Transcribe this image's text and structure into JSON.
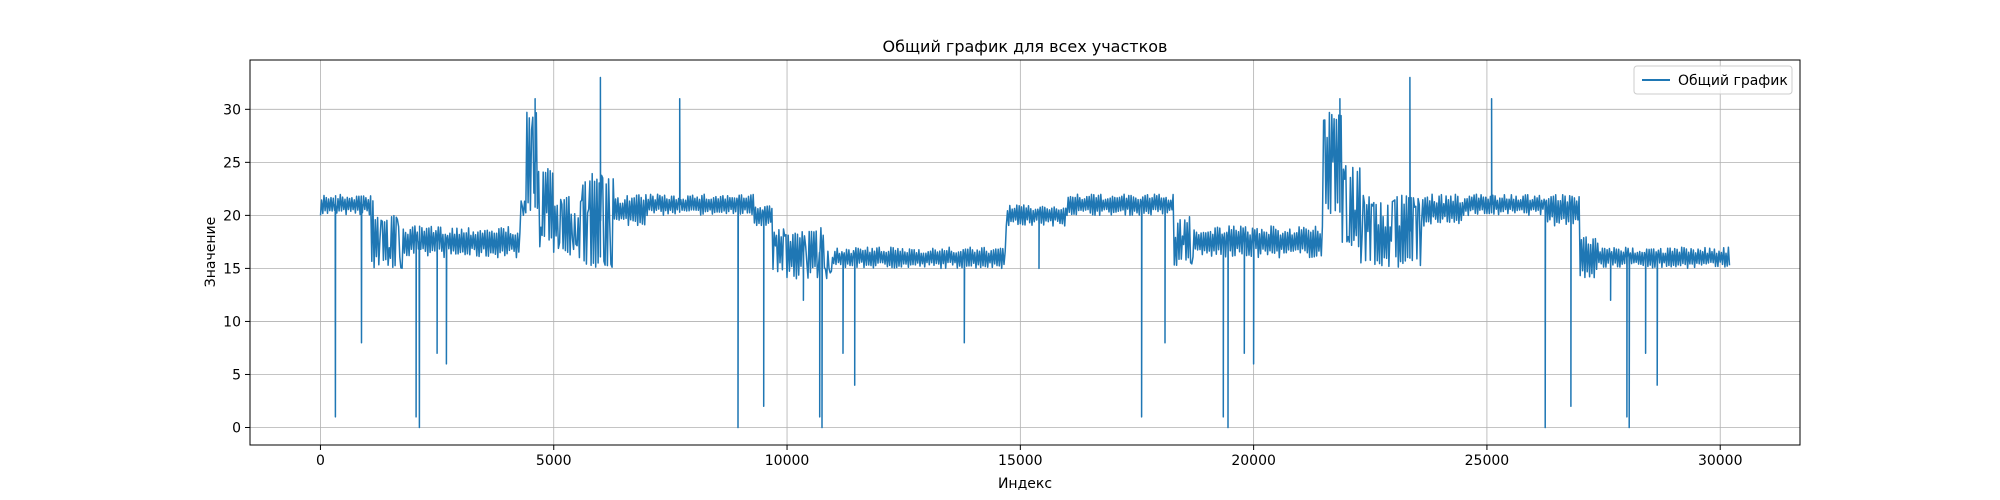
{
  "chart_data": {
    "type": "line",
    "title": "Общий график для всех участков",
    "xlabel": "Индекс",
    "ylabel": "Значение",
    "xlim": [
      -1510,
      31710
    ],
    "ylim": [
      -1.65,
      34.65
    ],
    "x_ticks": [
      0,
      5000,
      10000,
      15000,
      20000,
      25000,
      30000
    ],
    "y_ticks": [
      0,
      5,
      10,
      15,
      20,
      25,
      30
    ],
    "grid": true,
    "legend": {
      "placement": "top-right",
      "entries": [
        "Общий график"
      ]
    },
    "series": [
      {
        "name": "Общий график",
        "color": "#1f77b4",
        "x_range": [
          0,
          30200
        ],
        "segments": [
          {
            "x": [
              0,
              1100
            ],
            "low": 20,
            "high": 22
          },
          {
            "x": [
              1100,
              1150
            ],
            "low": 15,
            "high": 22
          },
          {
            "x": [
              1150,
              1800
            ],
            "low": 15,
            "high": 20
          },
          {
            "x": [
              1800,
              4300
            ],
            "low": 16,
            "high": 19
          },
          {
            "x": [
              4300,
              4700
            ],
            "low": 20,
            "high": 30
          },
          {
            "x": [
              4700,
              5000
            ],
            "low": 17,
            "high": 25
          },
          {
            "x": [
              5000,
              5600
            ],
            "low": 16,
            "high": 22
          },
          {
            "x": [
              5600,
              6300
            ],
            "low": 15,
            "high": 24
          },
          {
            "x": [
              6300,
              7000
            ],
            "low": 19,
            "high": 22
          },
          {
            "x": [
              7000,
              9300
            ],
            "low": 20,
            "high": 22
          },
          {
            "x": [
              9300,
              9700
            ],
            "low": 19,
            "high": 21
          },
          {
            "x": [
              9700,
              11000
            ],
            "low": 14,
            "high": 19
          },
          {
            "x": [
              11000,
              14700
            ],
            "low": 15,
            "high": 17
          },
          {
            "x": [
              14700,
              16000
            ],
            "low": 19,
            "high": 21
          },
          {
            "x": [
              16000,
              18300
            ],
            "low": 20,
            "high": 22
          },
          {
            "x": [
              18300,
              18700
            ],
            "low": 15,
            "high": 20
          },
          {
            "x": [
              18700,
              21500
            ],
            "low": 16,
            "high": 19
          },
          {
            "x": [
              21500,
              21900
            ],
            "low": 20,
            "high": 30
          },
          {
            "x": [
              21900,
              22300
            ],
            "low": 17,
            "high": 25
          },
          {
            "x": [
              22300,
              23000
            ],
            "low": 15,
            "high": 22
          },
          {
            "x": [
              23000,
              23600
            ],
            "low": 15,
            "high": 22
          },
          {
            "x": [
              23600,
              24500
            ],
            "low": 19,
            "high": 22
          },
          {
            "x": [
              24500,
              26300
            ],
            "low": 20,
            "high": 22
          },
          {
            "x": [
              26300,
              27000
            ],
            "low": 19,
            "high": 22
          },
          {
            "x": [
              27000,
              27400
            ],
            "low": 14,
            "high": 18
          },
          {
            "x": [
              27400,
              30200
            ],
            "low": 15,
            "high": 17
          }
        ],
        "spikes": [
          {
            "x": 320,
            "y": 1
          },
          {
            "x": 880,
            "y": 8
          },
          {
            "x": 2050,
            "y": 1
          },
          {
            "x": 2120,
            "y": 0
          },
          {
            "x": 2500,
            "y": 7
          },
          {
            "x": 2700,
            "y": 6
          },
          {
            "x": 4600,
            "y": 31
          },
          {
            "x": 6000,
            "y": 33
          },
          {
            "x": 7700,
            "y": 31
          },
          {
            "x": 8950,
            "y": 0
          },
          {
            "x": 9500,
            "y": 2
          },
          {
            "x": 10350,
            "y": 12
          },
          {
            "x": 10700,
            "y": 1
          },
          {
            "x": 10750,
            "y": 0
          },
          {
            "x": 11200,
            "y": 7
          },
          {
            "x": 11450,
            "y": 4
          },
          {
            "x": 13800,
            "y": 8
          },
          {
            "x": 15400,
            "y": 15
          },
          {
            "x": 17600,
            "y": 1
          },
          {
            "x": 18100,
            "y": 8
          },
          {
            "x": 19350,
            "y": 1
          },
          {
            "x": 19450,
            "y": 0
          },
          {
            "x": 19800,
            "y": 7
          },
          {
            "x": 20000,
            "y": 6
          },
          {
            "x": 21850,
            "y": 31
          },
          {
            "x": 23350,
            "y": 33
          },
          {
            "x": 25100,
            "y": 31
          },
          {
            "x": 26250,
            "y": 0
          },
          {
            "x": 26800,
            "y": 2
          },
          {
            "x": 27650,
            "y": 12
          },
          {
            "x": 28000,
            "y": 1
          },
          {
            "x": 28050,
            "y": 0
          },
          {
            "x": 28400,
            "y": 7
          },
          {
            "x": 28650,
            "y": 4
          }
        ]
      }
    ]
  }
}
